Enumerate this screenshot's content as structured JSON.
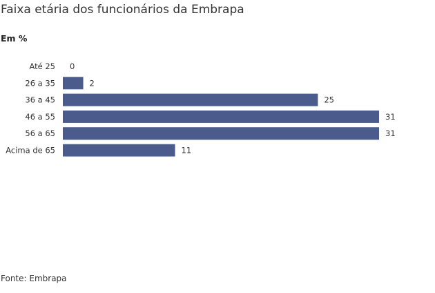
{
  "title": "Faixa etária dos funcionários da Embrapa",
  "subtitle": "Em %",
  "source": "Fonte: Embrapa",
  "bar_color": "#4a5b8c",
  "chart_data": {
    "type": "bar",
    "orientation": "horizontal",
    "categories": [
      "Até 25",
      "26 a 35",
      "36 a 45",
      "46 a 55",
      "56 a 65",
      "Acima de 65"
    ],
    "values": [
      0,
      2,
      25,
      31,
      31,
      11
    ],
    "data_labels": [
      "0",
      "2",
      "25",
      "31",
      "31",
      "11"
    ],
    "title": "Faixa etária dos funcionários da Embrapa",
    "xlabel": "",
    "ylabel": "",
    "xlim": [
      0,
      31
    ],
    "grid": false,
    "legend": false
  }
}
